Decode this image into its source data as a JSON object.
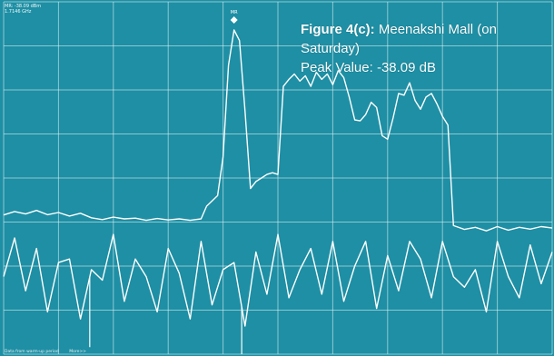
{
  "colors": {
    "background": "#1e8fa4",
    "grid": "#e8f6f8",
    "trace": "#ffffff"
  },
  "readout": {
    "level": "MR: -38.09 dBm",
    "frequency": "1.7146 GHz"
  },
  "marker": {
    "label": "MR"
  },
  "caption": {
    "figure_bold": "Figure 4(c):",
    "figure_rest": " Meenakshi Mall (on Saturday)",
    "peak": "Peak Value: -38.09 dB"
  },
  "footer": {
    "left": "Data from warm-up period",
    "right": "More>>"
  },
  "chart_data": {
    "type": "line",
    "title": "Figure 4(c): Meenakshi Mall (on Saturday)",
    "subtitle": "Peak Value: -38.09 dB",
    "grid": true,
    "xlim": [
      0,
      100
    ],
    "ylim": [
      0,
      100
    ],
    "marker_x": 42,
    "series": [
      {
        "role": "upper",
        "x": [
          0,
          2,
          4,
          6,
          8,
          10,
          12,
          14,
          16,
          18,
          20,
          22,
          24,
          26,
          28,
          30,
          32,
          34,
          36,
          37,
          38,
          39,
          40,
          41,
          42,
          43,
          44,
          45,
          46,
          47,
          48,
          49,
          50,
          51,
          52,
          53,
          54,
          55,
          56,
          57,
          58,
          59,
          60,
          61,
          62,
          63,
          64,
          65,
          66,
          67,
          68,
          69,
          70,
          71,
          72,
          73,
          74,
          75,
          76,
          77,
          78,
          79,
          80,
          81,
          82,
          84,
          86,
          88,
          90,
          92,
          94,
          96,
          98,
          100
        ],
        "y": [
          39.5,
          40.5,
          39.8,
          40.8,
          39.6,
          40.2,
          39.2,
          40.0,
          38.7,
          38.2,
          38.9,
          38.4,
          38.6,
          38.0,
          38.5,
          38.1,
          38.4,
          38.0,
          38.4,
          42.0,
          43.5,
          45.0,
          56.0,
          82.0,
          92.0,
          89.0,
          69.0,
          47.0,
          49.0,
          50.0,
          51.0,
          51.5,
          51.0,
          76.0,
          78.0,
          79.5,
          77.5,
          79.0,
          76.0,
          80.0,
          78.0,
          79.5,
          76.5,
          80.5,
          78.5,
          73.0,
          66.5,
          66.2,
          68.0,
          71.5,
          70.0,
          62.0,
          61.0,
          67.0,
          74.0,
          73.5,
          77.0,
          72.0,
          69.5,
          73.0,
          74.0,
          71.0,
          67.5,
          65.0,
          36.5,
          35.4,
          36.0,
          35.0,
          36.2,
          35.2,
          36.0,
          35.5,
          36.2,
          35.8
        ]
      },
      {
        "role": "lower",
        "x": [
          0,
          2,
          4,
          6,
          8,
          10,
          12,
          14,
          16,
          18,
          20,
          22,
          24,
          26,
          28,
          30,
          32,
          34,
          36,
          38,
          40,
          42,
          44,
          46,
          48,
          50,
          52,
          54,
          56,
          58,
          60,
          62,
          64,
          66,
          68,
          70,
          72,
          74,
          76,
          78,
          80,
          82,
          84,
          86,
          88,
          90,
          92,
          94,
          96,
          98,
          100
        ],
        "y": [
          22,
          33,
          18,
          30,
          12,
          26,
          27,
          10,
          24,
          21,
          34,
          15,
          27,
          22,
          12,
          30,
          23,
          10,
          32,
          14,
          24,
          26,
          8,
          29,
          17,
          34,
          16,
          24,
          30,
          17,
          32,
          15,
          25,
          32,
          13,
          28,
          18,
          32,
          27,
          16,
          32,
          22,
          19,
          24,
          12,
          32,
          22,
          16,
          31,
          20,
          29
        ]
      }
    ],
    "spikes": [
      {
        "x": 15.7,
        "y": 2
      },
      {
        "x": 43.4,
        "y": 0
      }
    ]
  }
}
